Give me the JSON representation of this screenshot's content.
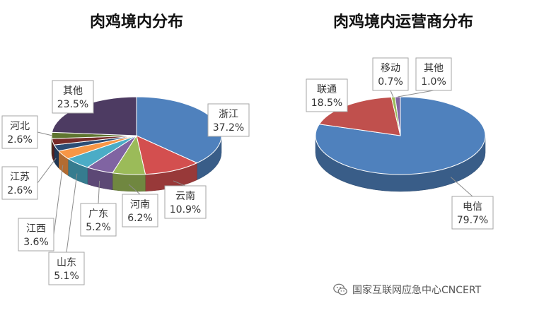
{
  "chart_data": [
    {
      "type": "pie",
      "title": "肉鸡境内分布",
      "slices": [
        {
          "label": "浙江",
          "value": 37.2,
          "display": "37.2%",
          "color": "#4f81bd"
        },
        {
          "label": "云南",
          "value": 10.9,
          "display": "10.9%",
          "color": "#d34f4f"
        },
        {
          "label": "河南",
          "value": 6.2,
          "display": "6.2%",
          "color": "#9bbb59"
        },
        {
          "label": "广东",
          "value": 5.2,
          "display": "5.2%",
          "color": "#8064a2"
        },
        {
          "label": "山东",
          "value": 5.1,
          "display": "5.1%",
          "color": "#4bacc6"
        },
        {
          "label": "江西",
          "value": 3.6,
          "display": "3.6%",
          "color": "#f79646"
        },
        {
          "label": "江苏",
          "value": 2.6,
          "display": "2.6%",
          "color": "#2c4d75"
        },
        {
          "label": "",
          "value": 2.6,
          "display": "",
          "color": "#772c2a"
        },
        {
          "label": "河北",
          "value": 2.6,
          "display": "2.6%",
          "color": "#5f7530"
        },
        {
          "label": "其他",
          "value": 23.5,
          "display": "23.5%",
          "color": "#4d3b62"
        }
      ]
    },
    {
      "type": "pie",
      "title": "肉鸡境内运营商分布",
      "slices": [
        {
          "label": "电信",
          "value": 79.7,
          "display": "79.7%",
          "color": "#4f81bd"
        },
        {
          "label": "联通",
          "value": 18.5,
          "display": "18.5%",
          "color": "#c0504d"
        },
        {
          "label": "移动",
          "value": 0.7,
          "display": "0.7%",
          "color": "#9bbb59"
        },
        {
          "label": "其他",
          "value": 1.0,
          "display": "1.0%",
          "color": "#8064a2"
        }
      ]
    }
  ],
  "watermark": {
    "text": "国家互联网应急中心CNCERT",
    "icon": "wechat-icon"
  }
}
